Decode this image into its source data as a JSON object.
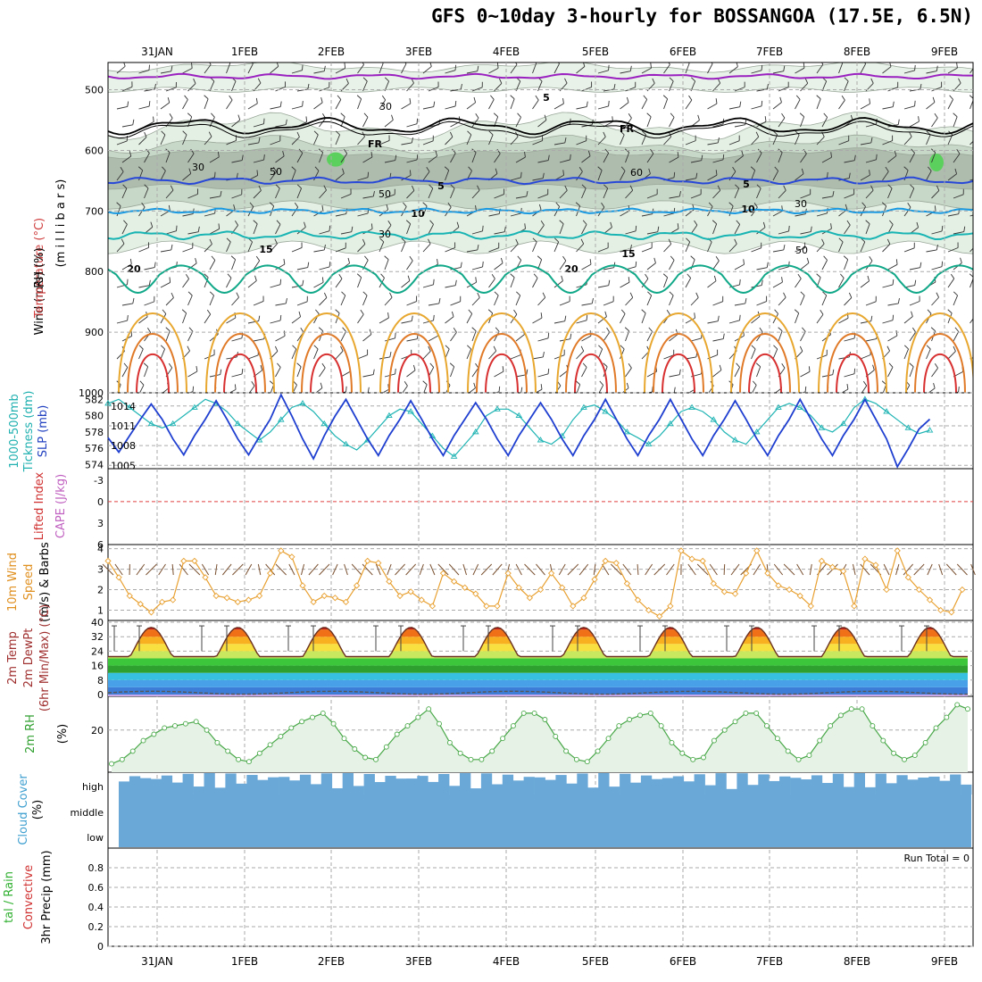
{
  "title": "GFS 0~10day 3-hourly for BOSSANGOA (17.5E, 6.5N)",
  "dates": [
    "31JAN",
    "1FEB",
    "2FEB",
    "3FEB",
    "4FEB",
    "5FEB",
    "6FEB",
    "7FEB",
    "8FEB",
    "9FEB"
  ],
  "panel_labels": {
    "upper": [
      {
        "text": "Wind (m/s)",
        "color": "#000000"
      },
      {
        "text": "Temperature (°C)",
        "color": "#d04040"
      },
      {
        "text": "RH (%)",
        "color": "#000000"
      },
      {
        "text": "(m i l l i b a r s)",
        "color": "#000000"
      }
    ],
    "slp": [
      {
        "text": "1000-500mb",
        "color": "#20b0b0"
      },
      {
        "text": "Tickness (dm)",
        "color": "#20b0b0"
      },
      {
        "text": "SLP (mb)",
        "color": "#2040c0"
      }
    ],
    "cape": [
      {
        "text": "Lifted Index",
        "color": "#d03030"
      },
      {
        "text": "CAPE (J/kg)",
        "color": "#c060c0"
      }
    ],
    "wind10": [
      {
        "text": "10m Wind",
        "color": "#e09020"
      },
      {
        "text": "Speed",
        "color": "#e09020"
      },
      {
        "text": "(m/s) & Barbs",
        "color": "#000000"
      }
    ],
    "temp2m": [
      {
        "text": "2m Temp",
        "color": "#a03030"
      },
      {
        "text": "2m DewPt",
        "color": "#a03030"
      },
      {
        "text": "(6hr Min/Max) (°C)",
        "color": "#a03030"
      }
    ],
    "rh2m": [
      {
        "text": "2m RH",
        "color": "#30a030"
      },
      {
        "text": "(%)",
        "color": "#000000"
      }
    ],
    "cloud": [
      {
        "text": "Cloud Cover",
        "color": "#40a0d0"
      },
      {
        "text": "(%)",
        "color": "#000000"
      }
    ],
    "precip": [
      {
        "text": "tal / Rain",
        "color": "#30b030"
      },
      {
        "text": "Convective",
        "color": "#d03030"
      },
      {
        "text": "3hr Precip (mm)",
        "color": "#000000"
      }
    ]
  },
  "cloud_levels": [
    "high",
    "middle",
    "low"
  ],
  "run_total": "Run Total = 0",
  "colors": {
    "slp": "#1f3fd0",
    "thickness": "#20b4b4",
    "wind_speed": "#e8a030",
    "rh": "#48a848",
    "cloud": "#6aa8d8",
    "lifted_index": "#e04040"
  },
  "chart_data": [
    {
      "type": "heatmap",
      "name": "upper-air",
      "ylabel": "millibars",
      "yticks": [
        500,
        600,
        700,
        800,
        900,
        1000
      ],
      "contour_labels": [
        {
          "text": "5",
          "color": "#9020b0"
        },
        {
          "text": "FR",
          "color": "#000000"
        },
        {
          "text": "FR",
          "color": "#000000"
        },
        {
          "text": "5",
          "color": "#2040d0"
        },
        {
          "text": "5",
          "color": "#2040d0"
        },
        {
          "text": "10",
          "color": "#1890d8"
        },
        {
          "text": "10",
          "color": "#1890d8"
        },
        {
          "text": "15",
          "color": "#18b0b0"
        },
        {
          "text": "15",
          "color": "#18b0b0"
        },
        {
          "text": "20",
          "color": "#10a080"
        },
        {
          "text": "20",
          "color": "#10a080"
        },
        {
          "text": "30",
          "color": "#999999"
        },
        {
          "text": "30",
          "color": "#999999"
        },
        {
          "text": "50",
          "color": "#999999"
        },
        {
          "text": "50",
          "color": "#999999"
        },
        {
          "text": "60",
          "color": "#999999"
        },
        {
          "text": "30",
          "color": "#999999"
        },
        {
          "text": "30",
          "color": "#999999"
        },
        {
          "text": "50",
          "color": "#999999"
        }
      ]
    },
    {
      "type": "line",
      "name": "slp-thickness",
      "yticks_left": [
        574,
        576,
        578,
        580,
        582
      ],
      "yticks_right": [
        1005,
        1008,
        1011,
        1014
      ],
      "slp_min": 1004.5,
      "slp_max": 1016,
      "thick_min": 573.5,
      "thick_max": 582.8,
      "slp": [
        1009.2,
        1007,
        1009.5,
        1012,
        1014.3,
        1012,
        1009,
        1006.6,
        1009.5,
        1012,
        1014.8,
        1012,
        1009,
        1006.6,
        1009.4,
        1012,
        1015.7,
        1012.5,
        1009,
        1006,
        1009.5,
        1012.5,
        1015,
        1012,
        1009,
        1006.5,
        1009.5,
        1012,
        1014.8,
        1012,
        1009,
        1006.5,
        1009.5,
        1012,
        1014.5,
        1012,
        1009,
        1006.5,
        1009.5,
        1012,
        1014.5,
        1012,
        1009,
        1006.5,
        1009.5,
        1012,
        1015,
        1012,
        1009,
        1006.5,
        1009.5,
        1012,
        1015,
        1012,
        1009,
        1006.5,
        1009.5,
        1012,
        1014.8,
        1012,
        1009,
        1006.5,
        1009.5,
        1012,
        1015,
        1012,
        1009,
        1006.5,
        1009.5,
        1012,
        1015,
        1012,
        1009,
        1004.8,
        1007.5,
        1010.5,
        1012
      ],
      "thickness": [
        581.5,
        582,
        581,
        580,
        579,
        578.5,
        579,
        580,
        581,
        582,
        581.5,
        580.5,
        579,
        578,
        577,
        578,
        579.5,
        581,
        581.5,
        580.5,
        579,
        577.5,
        576.5,
        575.8,
        577,
        578.5,
        580,
        580.8,
        580.5,
        579,
        577.5,
        576,
        575,
        576.5,
        578,
        580,
        580.8,
        580.8,
        580,
        578.5,
        577,
        576.5,
        577.5,
        579.5,
        581,
        581.3,
        580.5,
        579.5,
        578,
        577.3,
        576.5,
        577.5,
        579,
        580.5,
        581,
        580.5,
        579.5,
        578,
        577,
        576.5,
        578,
        579.5,
        581,
        581.5,
        581,
        580,
        578.5,
        578,
        579,
        581,
        582,
        581.5,
        580.5,
        579.5,
        578.5,
        577.8,
        578.2
      ]
    },
    {
      "type": "line",
      "name": "cape-lifted-index",
      "yticks": [
        -3,
        0,
        3,
        6
      ],
      "ylim": [
        -4.6,
        6
      ],
      "lifted_index": 0
    },
    {
      "type": "line",
      "name": "10m-wind",
      "yticks": [
        1,
        2,
        3,
        4
      ],
      "ylim": [
        0.5,
        4.2
      ],
      "speed": [
        3.4,
        2.6,
        1.7,
        1.3,
        0.9,
        1.4,
        1.5,
        3.4,
        3.4,
        2.6,
        1.7,
        1.6,
        1.4,
        1.5,
        1.7,
        2.8,
        3.9,
        3.6,
        2.2,
        1.4,
        1.7,
        1.6,
        1.4,
        2.2,
        3.4,
        3.3,
        2.4,
        1.7,
        1.9,
        1.5,
        1.2,
        2.8,
        2.4,
        2.1,
        1.8,
        1.2,
        1.2,
        2.8,
        2.1,
        1.6,
        2.0,
        2.8,
        2.1,
        1.2,
        1.6,
        2.5,
        3.4,
        3.3,
        2.3,
        1.5,
        1.0,
        0.7,
        1.2,
        3.9,
        3.5,
        3.4,
        2.3,
        1.9,
        1.8,
        2.8,
        3.9,
        2.8,
        2.2,
        2.0,
        1.7,
        1.2,
        3.4,
        3.1,
        2.9,
        1.2,
        3.5,
        3.2,
        2.0,
        3.9,
        2.6,
        2.0,
        1.5,
        1.0,
        0.9,
        2.0
      ]
    },
    {
      "type": "area",
      "name": "2m-temp",
      "yticks": [
        0,
        8,
        16,
        24,
        32,
        40
      ],
      "ylim": [
        -1,
        41
      ],
      "temp_min": 20,
      "temp_max": 37
    },
    {
      "type": "area",
      "name": "2m-rh",
      "yticks": [
        20
      ],
      "ylim": [
        0,
        36
      ],
      "rh": [
        4,
        6,
        10,
        15,
        18,
        21,
        22,
        23,
        24,
        20,
        14,
        10,
        6,
        5,
        9,
        13,
        17,
        21,
        24,
        26,
        28,
        23,
        16,
        11,
        7,
        6,
        12,
        18,
        22,
        26,
        30,
        23,
        14,
        9,
        6,
        6,
        10,
        16,
        22,
        28,
        28,
        25,
        17,
        10,
        6,
        5,
        10,
        16,
        22,
        25,
        27,
        28,
        22,
        14,
        9,
        6,
        7,
        15,
        20,
        24,
        28,
        28,
        22,
        16,
        10,
        6,
        8,
        15,
        22,
        27,
        30,
        30,
        22,
        15,
        9,
        6,
        8,
        14,
        21,
        26,
        32,
        30
      ]
    },
    {
      "type": "bar",
      "name": "cloud-cover",
      "ylim": [
        0,
        100
      ]
    },
    {
      "type": "bar",
      "name": "3hr-precip",
      "yticks": [
        0,
        0.2,
        0.4,
        0.6,
        0.8
      ],
      "ylim": [
        0,
        1
      ],
      "values": []
    }
  ]
}
